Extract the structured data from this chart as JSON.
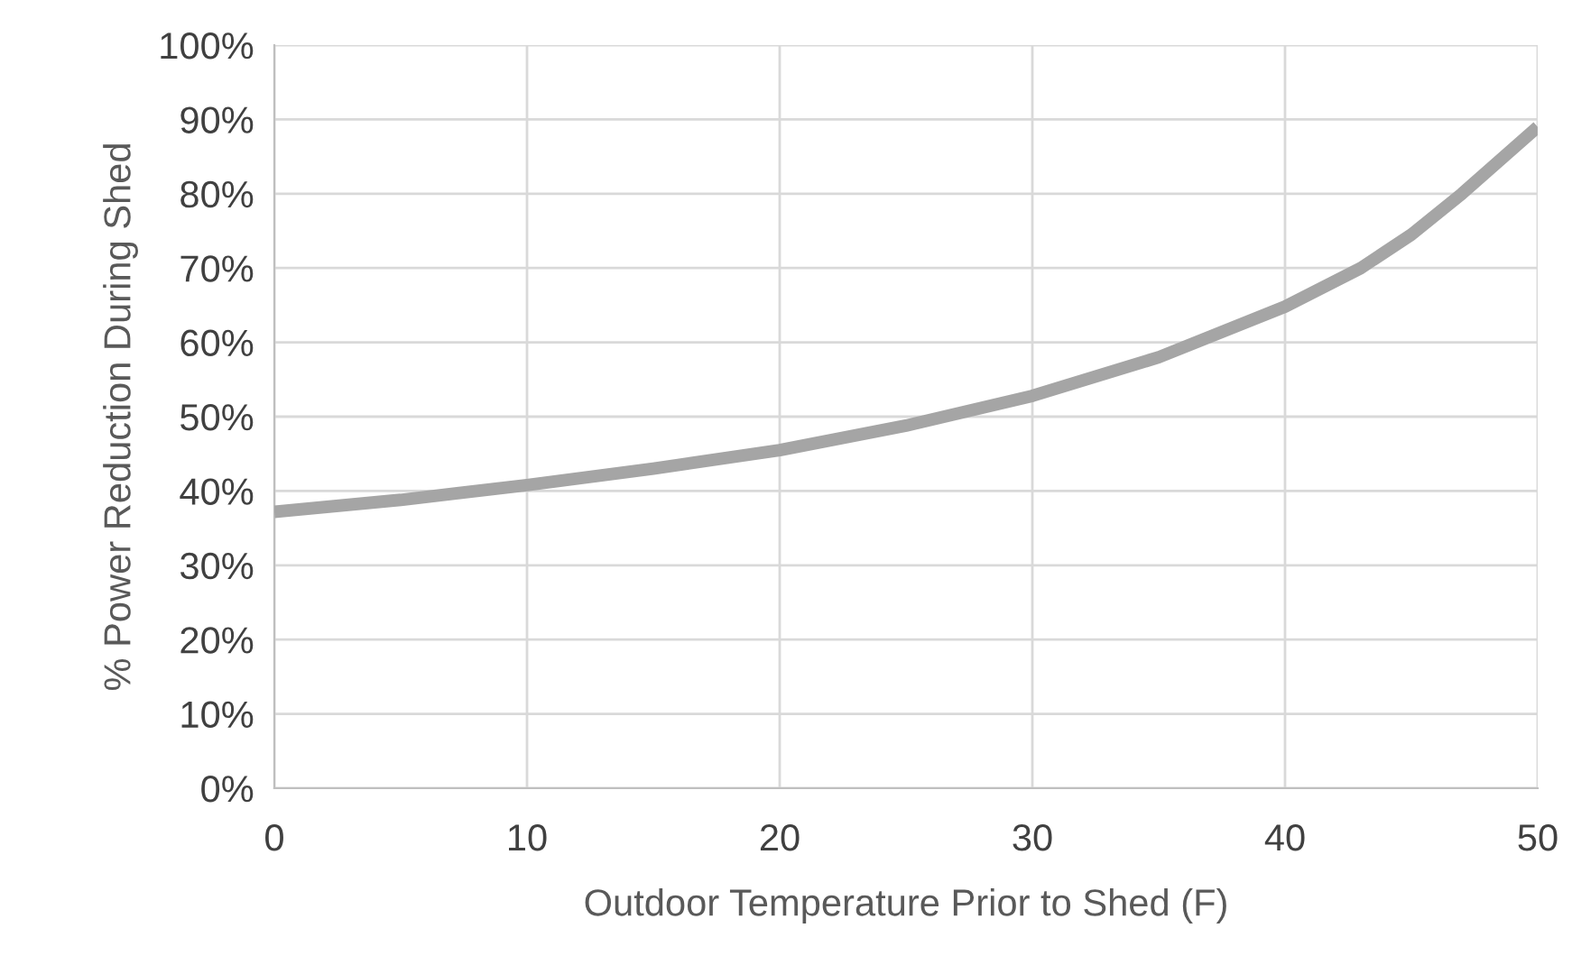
{
  "chart_data": {
    "type": "line",
    "xlabel": "Outdoor Temperature Prior to Shed (F)",
    "ylabel": "% Power Reduction During Shed",
    "x": [
      0,
      5,
      10,
      15,
      20,
      25,
      30,
      35,
      40,
      43,
      45,
      47,
      50
    ],
    "series": [
      {
        "color": "#a5a5a5",
        "values": [
          37.2,
          38.8,
          40.8,
          43,
          45.5,
          48.8,
          52.8,
          58,
          64.8,
          70,
          74.5,
          80,
          89
        ]
      }
    ],
    "xlim": [
      0,
      50
    ],
    "xticks": [
      0,
      10,
      20,
      30,
      40,
      50
    ],
    "ylim": [
      0,
      100
    ],
    "yticks": [
      {
        "value": 0,
        "label": "0%"
      },
      {
        "value": 10,
        "label": "10%"
      },
      {
        "value": 20,
        "label": "20%"
      },
      {
        "value": 30,
        "label": "30%"
      },
      {
        "value": 40,
        "label": "40%"
      },
      {
        "value": 50,
        "label": "50%"
      },
      {
        "value": 60,
        "label": "60%"
      },
      {
        "value": 70,
        "label": "70%"
      },
      {
        "value": 80,
        "label": "80%"
      },
      {
        "value": 90,
        "label": "90%"
      },
      {
        "value": 100,
        "label": "100%"
      }
    ],
    "grid": true
  }
}
